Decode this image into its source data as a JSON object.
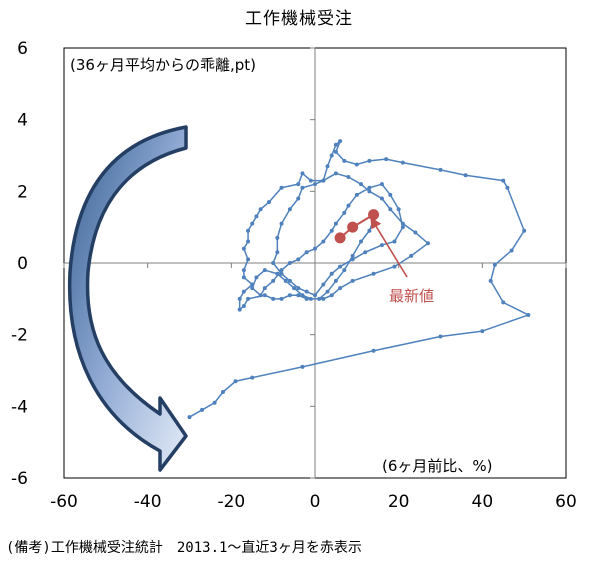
{
  "chart_data": {
    "type": "scatter",
    "title": "工作機械受注",
    "ylabel": "(36ヶ月平均からの乖離,pt)",
    "xlabel": "(6ヶ月前比、%)",
    "xlim": [
      -60,
      60
    ],
    "ylim": [
      -6,
      6
    ],
    "xticks": [
      "-60",
      "-40",
      "-20",
      "0",
      "20",
      "40",
      "60"
    ],
    "yticks": [
      "6",
      "4",
      "2",
      "0",
      "-2",
      "-4",
      "-6"
    ],
    "grid": false,
    "colors": {
      "path": "#4f81bd",
      "latest": "#c0504d",
      "arrow": "#365f91"
    },
    "annotation": "最新値",
    "series": [
      {
        "points": [
          [
            -30,
            -4.3
          ],
          [
            -27,
            -4.1
          ],
          [
            -24,
            -3.9
          ],
          [
            -22,
            -3.6
          ],
          [
            -19,
            -3.3
          ],
          [
            -15,
            -3.2
          ],
          [
            -3,
            -2.9
          ],
          [
            14,
            -2.45
          ],
          [
            30,
            -2.05
          ],
          [
            40,
            -1.9
          ],
          [
            51,
            -1.45
          ],
          [
            45,
            -1.1
          ],
          [
            42,
            -0.5
          ],
          [
            43,
            -0.05
          ],
          [
            47,
            0.35
          ],
          [
            50,
            0.9
          ],
          [
            46,
            2.1
          ],
          [
            45,
            2.3
          ],
          [
            36,
            2.45
          ],
          [
            30,
            2.6
          ],
          [
            21,
            2.8
          ],
          [
            17,
            2.9
          ],
          [
            13,
            2.85
          ],
          [
            10,
            2.75
          ],
          [
            7,
            2.85
          ],
          [
            5,
            3.1
          ],
          [
            6,
            3.4
          ],
          [
            5,
            3.3
          ],
          [
            4,
            3.0
          ],
          [
            3,
            2.7
          ],
          [
            2,
            2.3
          ],
          [
            -1,
            2.3
          ],
          [
            -3,
            2.5
          ],
          [
            -4,
            2.2
          ],
          [
            -8,
            2.1
          ],
          [
            -11,
            1.7
          ],
          [
            -13,
            1.5
          ],
          [
            -14,
            1.3
          ],
          [
            -15,
            1.1
          ],
          [
            -16,
            0.9
          ],
          [
            -16,
            0.6
          ],
          [
            -17,
            0.4
          ],
          [
            -16,
            0.1
          ],
          [
            -17,
            -0.2
          ],
          [
            -17,
            -0.4
          ],
          [
            -15,
            -0.6
          ],
          [
            -17,
            -0.8
          ],
          [
            -18,
            -1.0
          ],
          [
            -18,
            -1.3
          ],
          [
            -17,
            -1.2
          ],
          [
            -16,
            -1.0
          ],
          [
            -12,
            -0.9
          ],
          [
            -10,
            -1.0
          ],
          [
            -8,
            -1.0
          ],
          [
            -6,
            -0.9
          ],
          [
            -4,
            -0.9
          ],
          [
            -2,
            -1.0
          ],
          [
            2,
            -1.0
          ],
          [
            4,
            -0.9
          ],
          [
            6,
            -0.7
          ],
          [
            9,
            -0.5
          ],
          [
            14,
            -0.3
          ],
          [
            19,
            -0.1
          ],
          [
            23,
            0.2
          ],
          [
            27,
            0.55
          ],
          [
            24,
            0.85
          ],
          [
            21,
            1.1
          ],
          [
            18,
            1.5
          ],
          [
            16,
            1.8
          ],
          [
            13,
            2.0
          ],
          [
            11,
            2.2
          ],
          [
            8,
            2.4
          ],
          [
            5,
            2.5
          ],
          [
            2,
            2.3
          ],
          [
            0,
            2.2
          ],
          [
            -3,
            2.1
          ],
          [
            -4,
            1.8
          ],
          [
            -6,
            1.5
          ],
          [
            -8,
            1.1
          ],
          [
            -9,
            0.7
          ],
          [
            -9,
            0.3
          ],
          [
            -10,
            0.0
          ],
          [
            -8,
            -0.3
          ],
          [
            -6,
            -0.5
          ],
          [
            -4,
            -0.7
          ],
          [
            -2,
            -0.8
          ],
          [
            0,
            -0.9
          ],
          [
            2,
            -0.6
          ],
          [
            4,
            -0.3
          ],
          [
            6,
            -0.1
          ],
          [
            9,
            0.1
          ],
          [
            12,
            0.3
          ],
          [
            16,
            0.5
          ],
          [
            19,
            0.6
          ],
          [
            21,
            1.0
          ],
          [
            20,
            1.5
          ],
          [
            18,
            1.9
          ],
          [
            16,
            2.2
          ],
          [
            13,
            2.1
          ],
          [
            10,
            1.9
          ],
          [
            8,
            1.6
          ],
          [
            7,
            1.4
          ],
          [
            5,
            1.1
          ],
          [
            4,
            0.9
          ],
          [
            2,
            0.6
          ],
          [
            0,
            0.4
          ],
          [
            -2,
            0.3
          ],
          [
            -4,
            0.1
          ],
          [
            -6,
            0.0
          ],
          [
            -8,
            -0.2
          ],
          [
            -10,
            -0.5
          ],
          [
            -12,
            -0.7
          ],
          [
            -13,
            -0.9
          ],
          [
            -15,
            -0.7
          ],
          [
            -14,
            -0.4
          ],
          [
            -12,
            -0.2
          ],
          [
            -9,
            -0.3
          ],
          [
            -7,
            -0.5
          ],
          [
            -5,
            -0.7
          ],
          [
            -3,
            -0.9
          ],
          [
            -1,
            -1.0
          ],
          [
            1,
            -1.0
          ],
          [
            3,
            -0.8
          ],
          [
            5,
            -0.5
          ],
          [
            7,
            -0.2
          ],
          [
            9,
            0.2
          ],
          [
            11,
            0.6
          ],
          [
            13,
            0.9
          ],
          [
            14,
            1.2
          ]
        ]
      },
      {
        "name": "2013.1〜直近3ヶ月",
        "points": [
          [
            6,
            0.7
          ],
          [
            9,
            1.0
          ],
          [
            14,
            1.35
          ]
        ]
      }
    ]
  },
  "notes": {
    "top_left": "(36ヶ月平均からの乖離,pt)",
    "bottom_right": "(6ヶ月前比、%)",
    "latest": "最新値",
    "footer": "(備考)工作機械受注統計　2013.1～直近3ヶ月を赤表示"
  }
}
